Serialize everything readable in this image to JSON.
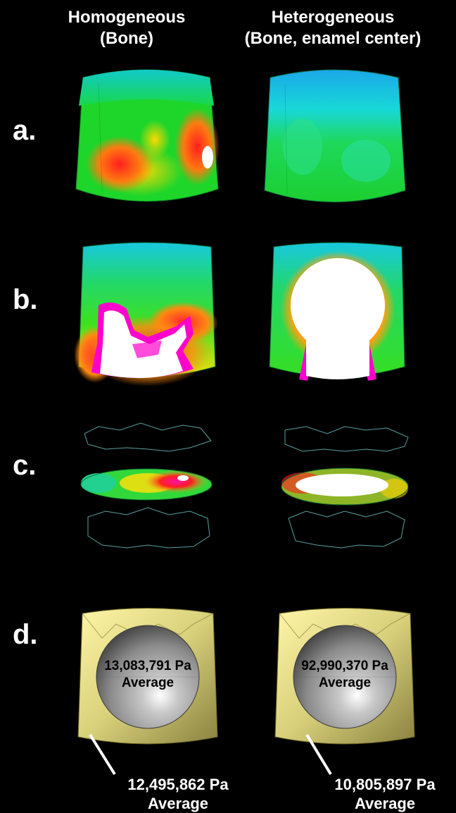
{
  "columns": [
    {
      "title_line1": "Homogeneous",
      "title_line2": "(Bone)"
    },
    {
      "title_line1": "Heterogeneous",
      "title_line2": "(Bone, enamel center)"
    }
  ],
  "rows": [
    {
      "label": "a."
    },
    {
      "label": "b."
    },
    {
      "label": "c."
    },
    {
      "label": "d."
    }
  ],
  "row_d": {
    "left": {
      "center_value": "13,083,791 Pa",
      "center_caption": "Average",
      "outer_value": "12,495,862 Pa",
      "outer_caption": "Average"
    },
    "right": {
      "center_value": "92,990,370 Pa",
      "center_caption": "Average",
      "outer_value": "10,805,897 Pa",
      "outer_caption": "Average"
    }
  },
  "colors": {
    "background": "#000000",
    "stress_low": "#00e5ff",
    "stress_mid": "#22e02a",
    "stress_high": "#ff1f1f",
    "stress_peak": "#ff00cc",
    "saturated": "#ffffff",
    "bone_shell": "#ddd78a",
    "enamel_sphere": "#9a9a9a"
  }
}
